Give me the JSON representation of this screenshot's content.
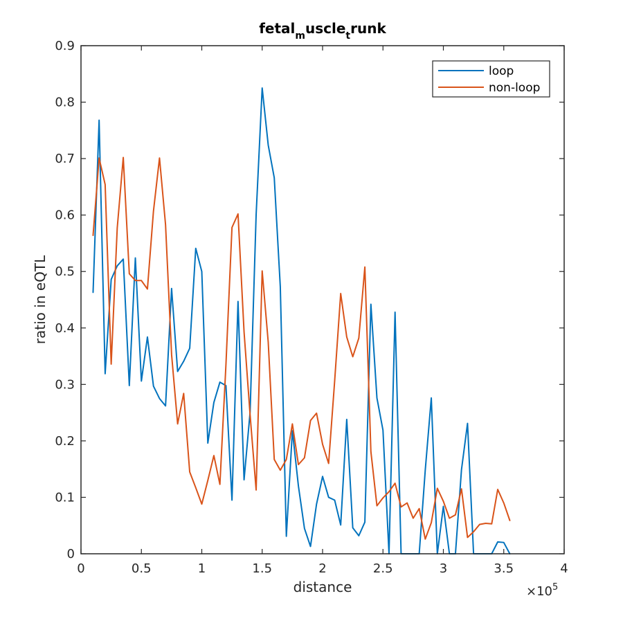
{
  "chart_data": {
    "type": "line",
    "title": {
      "p1": "fetal",
      "s1": "m",
      "p2": "uscle",
      "s2": "t",
      "p3": "runk"
    },
    "xlabel": "distance",
    "ylabel": "ratio in eQTL",
    "x_exponent_label": {
      "base": "×10",
      "exp": "5"
    },
    "xlim": [
      0,
      4
    ],
    "ylim": [
      0,
      0.9
    ],
    "xticks": [
      0,
      0.5,
      1,
      1.5,
      2,
      2.5,
      3,
      3.5,
      4
    ],
    "xtick_labels": [
      "0",
      "0.5",
      "1",
      "1.5",
      "2",
      "2.5",
      "3",
      "3.5",
      "4"
    ],
    "yticks": [
      0,
      0.1,
      0.2,
      0.3,
      0.4,
      0.5,
      0.6,
      0.7,
      0.8,
      0.9
    ],
    "ytick_labels": [
      "0",
      "0.1",
      "0.2",
      "0.3",
      "0.4",
      "0.5",
      "0.6",
      "0.7",
      "0.8",
      "0.9"
    ],
    "legend_position": "top-right",
    "x": [
      0.1,
      0.15,
      0.2,
      0.25,
      0.3,
      0.35,
      0.4,
      0.45,
      0.5,
      0.55,
      0.6,
      0.65,
      0.7,
      0.75,
      0.8,
      0.85,
      0.9,
      0.95,
      1.0,
      1.05,
      1.1,
      1.15,
      1.2,
      1.25,
      1.3,
      1.35,
      1.4,
      1.45,
      1.5,
      1.55,
      1.6,
      1.65,
      1.7,
      1.75,
      1.8,
      1.85,
      1.9,
      1.95,
      2.0,
      2.05,
      2.1,
      2.15,
      2.2,
      2.25,
      2.3,
      2.35,
      2.4,
      2.45,
      2.5,
      2.55,
      2.6,
      2.65,
      2.7,
      2.75,
      2.8,
      2.85,
      2.9,
      2.95,
      3.0,
      3.05,
      3.1,
      3.15,
      3.2,
      3.25,
      3.3,
      3.35,
      3.4,
      3.45,
      3.5,
      3.55
    ],
    "series": [
      {
        "name": "loop",
        "color": "#0072BD",
        "values": [
          0.463,
          0.768,
          0.319,
          0.486,
          0.51,
          0.522,
          0.298,
          0.524,
          0.306,
          0.384,
          0.297,
          0.275,
          0.262,
          0.47,
          0.323,
          0.341,
          0.364,
          0.541,
          0.5,
          0.196,
          0.268,
          0.304,
          0.298,
          0.095,
          0.447,
          0.131,
          0.251,
          0.601,
          0.825,
          0.724,
          0.666,
          0.473,
          0.031,
          0.218,
          0.12,
          0.045,
          0.013,
          0.088,
          0.137,
          0.1,
          0.095,
          0.051,
          0.238,
          0.046,
          0.032,
          0.056,
          0.442,
          0.276,
          0.219,
          0.0,
          0.428,
          0.0,
          0.0,
          0.0,
          0.0,
          0.148,
          0.276,
          0.0,
          0.084,
          0.0,
          0.0,
          0.149,
          0.231,
          0.0,
          0.0,
          0.0,
          0.0,
          0.021,
          0.02,
          0.0
        ]
      },
      {
        "name": "non-loop",
        "color": "#D95319",
        "values": [
          0.564,
          0.701,
          0.654,
          0.336,
          0.577,
          0.702,
          0.496,
          0.484,
          0.484,
          0.469,
          0.607,
          0.701,
          0.583,
          0.353,
          0.23,
          0.284,
          0.145,
          0.117,
          0.088,
          0.13,
          0.174,
          0.123,
          0.335,
          0.578,
          0.602,
          0.393,
          0.246,
          0.113,
          0.501,
          0.375,
          0.167,
          0.148,
          0.167,
          0.23,
          0.158,
          0.17,
          0.236,
          0.249,
          0.194,
          0.16,
          0.306,
          0.461,
          0.384,
          0.349,
          0.382,
          0.508,
          0.181,
          0.085,
          0.099,
          0.11,
          0.125,
          0.083,
          0.09,
          0.063,
          0.08,
          0.026,
          0.055,
          0.116,
          0.093,
          0.063,
          0.069,
          0.115,
          0.029,
          0.039,
          0.052,
          0.054,
          0.053,
          0.114,
          0.09,
          0.059
        ]
      }
    ]
  }
}
